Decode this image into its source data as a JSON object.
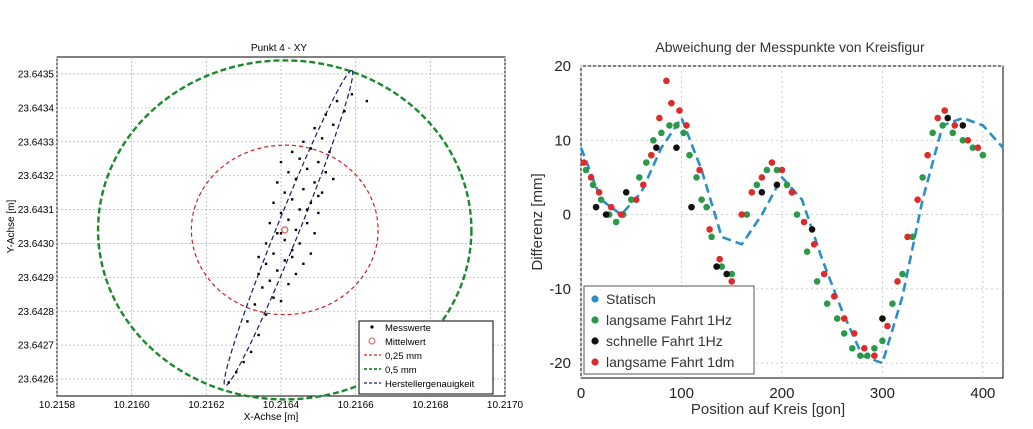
{
  "chart_data": [
    {
      "type": "scatter",
      "title": "Punkt 4 - XY",
      "xlabel": "X-Achse [m]",
      "ylabel": "Y-Achse [m]",
      "xlim": [
        10.2158,
        10.217
      ],
      "ylim": [
        23.64255,
        23.64355
      ],
      "xticks": [
        "10.2158",
        "10.2160",
        "10.2162",
        "10.2164",
        "10.2166",
        "10.2168",
        "10.2170"
      ],
      "yticks": [
        "23.6426",
        "23.6427",
        "23.6428",
        "23.6429",
        "23.6430",
        "23.6431",
        "23.6432",
        "23.6433",
        "23.6434",
        "23.6435"
      ],
      "grid": true,
      "legend_position": "bottom-right",
      "legend": [
        "Messwerte",
        "Mittelwert",
        "0,25  mm",
        "0,5 mm",
        "Herstellergenauigkeit"
      ],
      "colors": {
        "messwerte": "#000000",
        "mittelwert": "#e07070",
        "circle_025": "#cc2222",
        "circle_05": "#1a8a2a",
        "hersteller": "#1a1a66"
      },
      "mean": {
        "x": 10.21641,
        "y": 23.64304
      },
      "circles": [
        {
          "name": "0,25  mm",
          "radius_deg": 0.00025
        },
        {
          "name": "0,5 mm",
          "radius_deg": 0.0005
        }
      ],
      "ellipse": {
        "center": [
          10.21641,
          23.64304
        ],
        "x_from": 10.21625,
        "y_from": 23.64258,
        "x_to": 10.21659,
        "y_to": 23.64351,
        "minor_half_width": 3e-05
      },
      "messwerte": [
        [
          10.21628,
          23.64262
        ],
        [
          10.21632,
          23.64268
        ],
        [
          10.21634,
          23.64273
        ],
        [
          10.21631,
          23.64277
        ],
        [
          10.21636,
          23.64279
        ],
        [
          10.21633,
          23.64282
        ],
        [
          10.21638,
          23.64284
        ],
        [
          10.2164,
          23.64283
        ],
        [
          10.21635,
          23.64287
        ],
        [
          10.21637,
          23.64289
        ],
        [
          10.21642,
          23.64288
        ],
        [
          10.21634,
          23.64291
        ],
        [
          10.21639,
          23.64292
        ],
        [
          10.21644,
          23.64291
        ],
        [
          10.21636,
          23.64294
        ],
        [
          10.21641,
          23.64295
        ],
        [
          10.21646,
          23.64294
        ],
        [
          10.21638,
          23.64297
        ],
        [
          10.21643,
          23.64298
        ],
        [
          10.21648,
          23.64297
        ],
        [
          10.21636,
          23.643
        ],
        [
          10.21641,
          23.64301
        ],
        [
          10.21645,
          23.643
        ],
        [
          10.21639,
          23.64303
        ],
        [
          10.21644,
          23.64304
        ],
        [
          10.21649,
          23.64303
        ],
        [
          10.21637,
          23.64306
        ],
        [
          10.21642,
          23.64307
        ],
        [
          10.21647,
          23.64306
        ],
        [
          10.2164,
          23.64309
        ],
        [
          10.21645,
          23.6431
        ],
        [
          10.2165,
          23.64309
        ],
        [
          10.21638,
          23.64312
        ],
        [
          10.21643,
          23.64313
        ],
        [
          10.21648,
          23.64312
        ],
        [
          10.21641,
          23.64315
        ],
        [
          10.21646,
          23.64316
        ],
        [
          10.21651,
          23.64315
        ],
        [
          10.21639,
          23.64318
        ],
        [
          10.21644,
          23.64319
        ],
        [
          10.21649,
          23.64318
        ],
        [
          10.21642,
          23.64321
        ],
        [
          10.21647,
          23.64322
        ],
        [
          10.21652,
          23.64321
        ],
        [
          10.2164,
          23.64324
        ],
        [
          10.21645,
          23.64325
        ],
        [
          10.2165,
          23.64324
        ],
        [
          10.21643,
          23.64327
        ],
        [
          10.21648,
          23.64328
        ],
        [
          10.21653,
          23.64327
        ],
        [
          10.21646,
          23.6433
        ],
        [
          10.21651,
          23.64331
        ],
        [
          10.21649,
          23.64334
        ],
        [
          10.21654,
          23.64335
        ],
        [
          10.21652,
          23.64338
        ],
        [
          10.21657,
          23.64339
        ],
        [
          10.21655,
          23.64342
        ],
        [
          10.21659,
          23.64344
        ],
        [
          10.21663,
          23.64342
        ],
        [
          10.2163,
          23.64265
        ],
        [
          10.21626,
          23.64259
        ],
        [
          10.21634,
          23.64296
        ],
        [
          10.2165,
          23.64314
        ],
        [
          10.21654,
          23.64319
        ],
        [
          10.21647,
          23.6431
        ],
        [
          10.2164,
          23.64303
        ],
        [
          10.21643,
          23.64296
        ]
      ]
    },
    {
      "type": "scatter",
      "title": "Abweichung der Messpunkte von Kreisfigur",
      "xlabel": "Position auf Kreis [gon]",
      "ylabel": "Differenz [mm]",
      "xlim": [
        0,
        420
      ],
      "ylim": [
        -22,
        20
      ],
      "xticks": [
        0,
        100,
        200,
        300,
        400
      ],
      "yticks": [
        20,
        10,
        0,
        -10,
        -20
      ],
      "grid": true,
      "legend_position": "bottom-left",
      "series": [
        {
          "name": "Statisch",
          "color": "#2a8fc8",
          "style": "dashed-line",
          "x": [
            0,
            20,
            40,
            60,
            80,
            100,
            120,
            140,
            160,
            180,
            200,
            220,
            240,
            260,
            280,
            300,
            320,
            340,
            360,
            380,
            400,
            420
          ],
          "y": [
            9,
            2,
            0,
            3,
            9,
            13,
            6,
            -3,
            -4,
            0,
            5,
            2,
            -6,
            -13,
            -19,
            -20,
            -11,
            2,
            12,
            13,
            12,
            9
          ]
        },
        {
          "name": "langsame Fahrt 1Hz",
          "color": "#2a9a4a",
          "x": [
            5,
            12,
            20,
            28,
            35,
            42,
            50,
            58,
            65,
            72,
            80,
            88,
            95,
            102,
            108,
            115,
            120,
            125,
            130,
            140,
            150,
            165,
            175,
            185,
            195,
            205,
            215,
            225,
            235,
            245,
            255,
            262,
            270,
            278,
            285,
            292,
            300,
            310,
            320,
            330,
            340,
            350,
            360,
            370,
            380,
            390,
            400
          ],
          "y": [
            6,
            4,
            2,
            0,
            -1,
            0,
            2,
            5,
            7,
            10,
            11,
            12,
            12,
            11,
            8,
            5,
            2,
            1,
            -3,
            -7,
            -8,
            0,
            4,
            6,
            6,
            4,
            0,
            -5,
            -9,
            -12,
            -14,
            -16,
            -18,
            -19,
            -19,
            -18,
            -17,
            -12,
            -8,
            -3,
            5,
            11,
            12,
            11,
            10,
            9,
            8
          ]
        },
        {
          "name": "schnelle Fahrt    1Hz",
          "color": "#111111",
          "x": [
            15,
            25,
            45,
            75,
            95,
            110,
            135,
            145,
            180,
            195,
            210,
            230,
            300,
            365,
            380
          ],
          "y": [
            1,
            0,
            3,
            9,
            9,
            1,
            -7,
            -8,
            3,
            4,
            3,
            -2,
            -14,
            13,
            12
          ]
        },
        {
          "name": "langsame Fahrt 1dm",
          "color": "#dd2a2a",
          "x": [
            3,
            10,
            18,
            30,
            40,
            55,
            62,
            70,
            78,
            85,
            90,
            98,
            105,
            118,
            128,
            138,
            150,
            160,
            170,
            180,
            190,
            200,
            210,
            222,
            232,
            242,
            252,
            262,
            272,
            282,
            292,
            305,
            315,
            325,
            335,
            345,
            355,
            362,
            372,
            385,
            395
          ],
          "y": [
            7,
            5,
            3,
            1,
            0,
            2,
            4,
            8,
            13,
            18,
            15,
            14,
            12,
            6,
            -2,
            -6,
            -9,
            0,
            3,
            5,
            7,
            6,
            3,
            -1,
            -4,
            -8,
            -11,
            -14,
            -16,
            -18,
            -19,
            -15,
            -9,
            -3,
            2,
            8,
            13,
            14,
            12,
            10,
            9
          ]
        }
      ]
    }
  ]
}
